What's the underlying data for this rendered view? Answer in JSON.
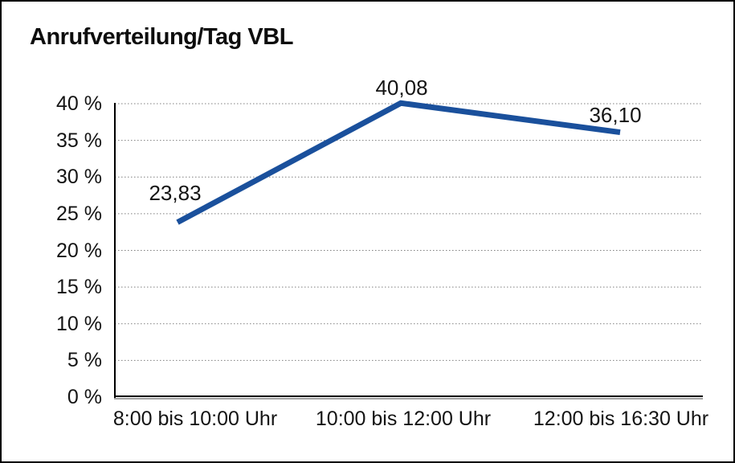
{
  "title": "Anrufverteilung/Tag VBL",
  "colors": {
    "line": "#1a509c",
    "grid": "#7f7f7f",
    "axis": "#000000",
    "axis_shadow": "#a0a0a0",
    "text": "#141414",
    "background": "#ffffff",
    "border": "#000000"
  },
  "chart_data": {
    "type": "line",
    "title": "Anrufverteilung/Tag VBL",
    "categories": [
      "8:00 bis 10:00 Uhr",
      "10:00 bis 12:00 Uhr",
      "12:00 bis 16:30 Uhr"
    ],
    "values": [
      23.83,
      40.08,
      36.1
    ],
    "data_labels": [
      "23,83",
      "40,08",
      "36,10"
    ],
    "y_ticks": [
      "0 %",
      "5 %",
      "10 %",
      "15 %",
      "20 %",
      "25 %",
      "30 %",
      "35 %",
      "40 %"
    ],
    "y_tick_values": [
      0,
      5,
      10,
      15,
      20,
      25,
      30,
      35,
      40
    ],
    "ylim": [
      0,
      40
    ],
    "xlabel": "",
    "ylabel": "",
    "grid": "horizontal-dotted",
    "legend": "none"
  }
}
